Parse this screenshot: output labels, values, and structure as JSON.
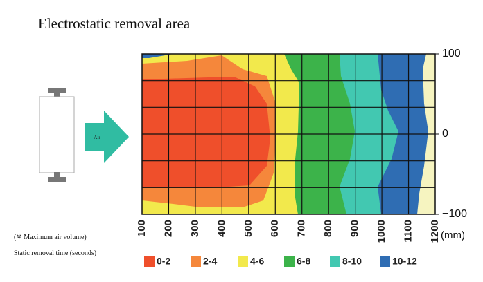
{
  "title": "Electrostatic removal area",
  "device_label": "Air",
  "x_ticks": [
    "100",
    "200",
    "300",
    "400",
    "500",
    "600",
    "700",
    "800",
    "900",
    "1000",
    "1100",
    "1200"
  ],
  "x_unit": "(mm)",
  "y_ticks": [
    "100",
    "0",
    "−100"
  ],
  "note": "(※ Maximum air volume)",
  "legend_title": "Static removal time (seconds)",
  "legend": [
    {
      "label": "0-2",
      "color": "#ef4f2b"
    },
    {
      "label": "2-4",
      "color": "#f5873b"
    },
    {
      "label": "4-6",
      "color": "#f2e94c"
    },
    {
      "label": "6-8",
      "color": "#3cb34a"
    },
    {
      "label": "8-10",
      "color": "#42c8b1"
    },
    {
      "label": "10-12",
      "color": "#2f6db3"
    }
  ]
}
